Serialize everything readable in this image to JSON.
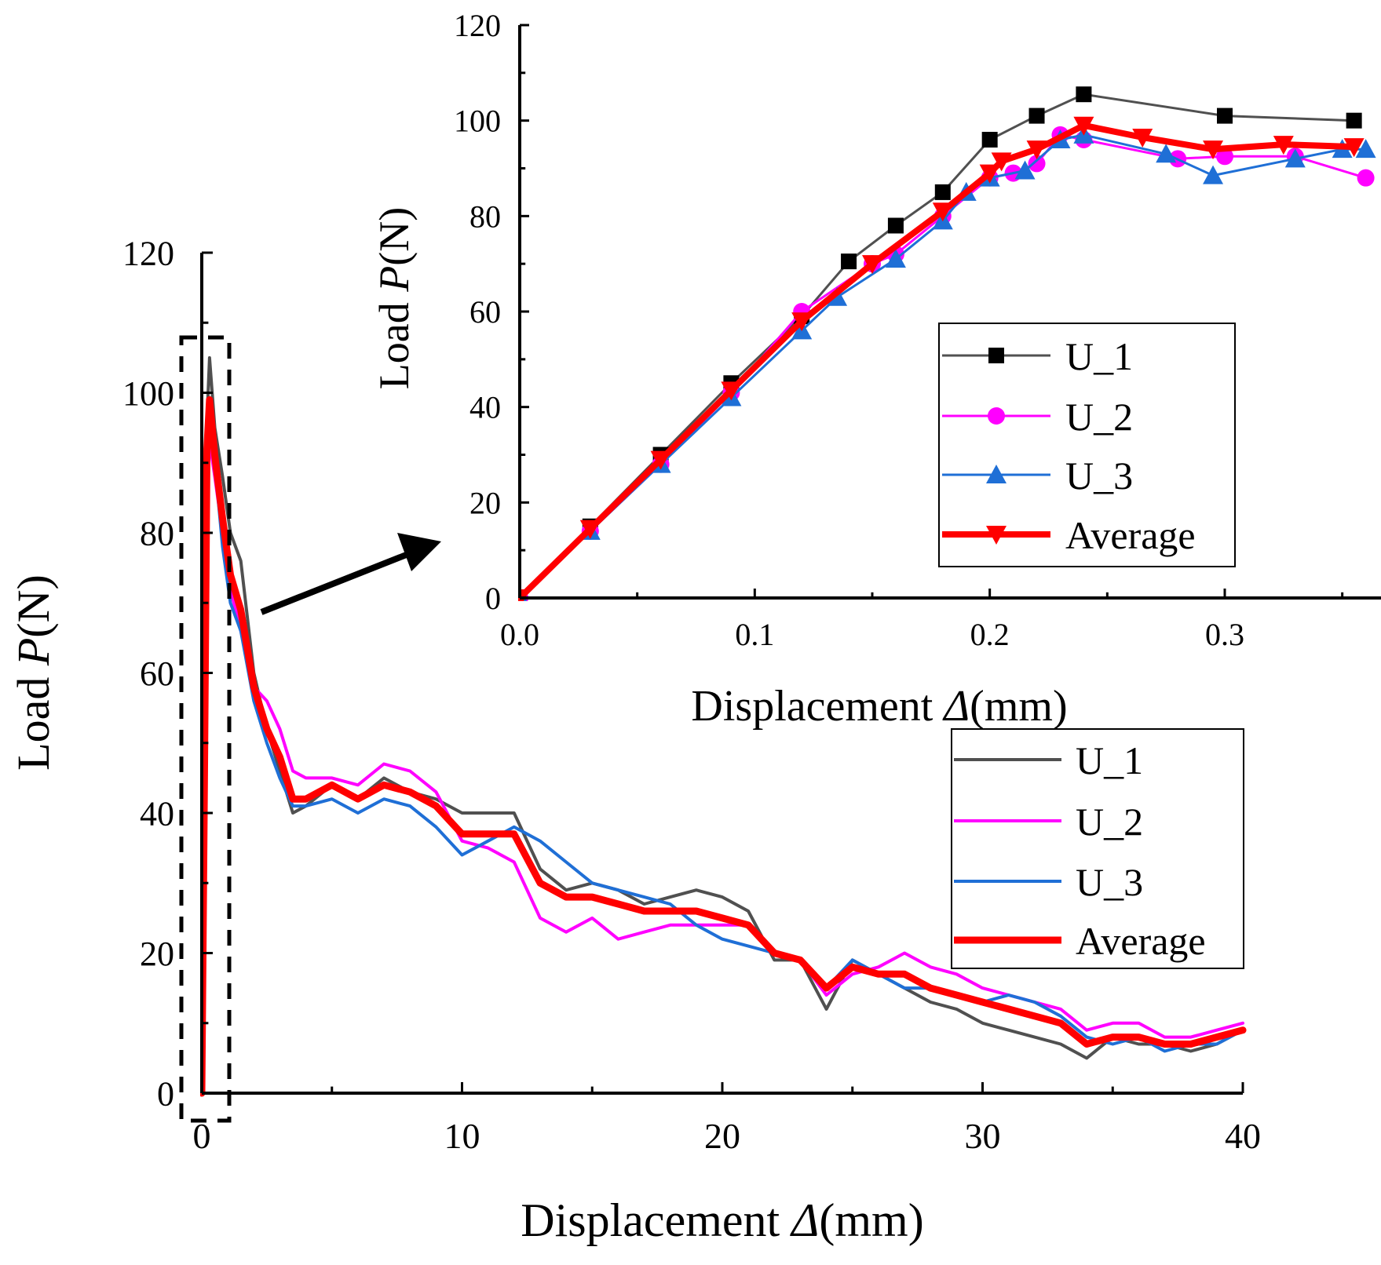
{
  "figure": {
    "colors": {
      "U_1": "#505050",
      "U_2": "#ff00ff",
      "U_3": "#1f6fd6",
      "Average": "#ff0000",
      "axis": "#000000"
    },
    "arrow_icon": "arrow-right-icon",
    "zoom_box": "dashed-rectangle"
  },
  "chart_data": [
    {
      "id": "main",
      "type": "line",
      "title": "",
      "xlabel_prefix": "Displacement ",
      "xlabel_symbol": "Δ",
      "xlabel_suffix": "(mm)",
      "ylabel_prefix": "Load ",
      "ylabel_symbol": "P",
      "ylabel_suffix": "(N)",
      "xlim": [
        0,
        40
      ],
      "ylim": [
        0,
        120
      ],
      "xticks": [
        0,
        10,
        20,
        30,
        40
      ],
      "xtick_labels": [
        "0",
        "10",
        "20",
        "30",
        "40"
      ],
      "yticks": [
        0,
        20,
        40,
        60,
        80,
        100,
        120
      ],
      "ytick_labels": [
        "0",
        "20",
        "40",
        "60",
        "80",
        "100",
        "120"
      ],
      "legend_position": "right",
      "series": [
        {
          "name": "U_1",
          "x": [
            0,
            0.1,
            0.2,
            0.3,
            0.5,
            0.8,
            1.1,
            1.5,
            2,
            2.5,
            3,
            3.5,
            4,
            5,
            6,
            7,
            8,
            9,
            10,
            11,
            12,
            13,
            14,
            15,
            16,
            17,
            18,
            19,
            20,
            21,
            22,
            23,
            24,
            25,
            26,
            27,
            28,
            29,
            30,
            31,
            32,
            33,
            34,
            35,
            36,
            37,
            38,
            39,
            40
          ],
          "y": [
            0,
            45,
            96,
            105,
            95,
            88,
            80,
            76,
            60,
            52,
            46,
            40,
            41,
            44,
            42,
            45,
            43,
            42,
            40,
            40,
            40,
            32,
            29,
            30,
            29,
            27,
            28,
            29,
            28,
            26,
            19,
            19,
            12,
            19,
            17,
            15,
            13,
            12,
            10,
            9,
            8,
            7,
            5,
            8,
            7,
            7,
            6,
            7,
            9
          ]
        },
        {
          "name": "U_2",
          "x": [
            0,
            0.1,
            0.2,
            0.3,
            0.5,
            0.8,
            1.1,
            1.5,
            2,
            2.5,
            3,
            3.5,
            4,
            5,
            6,
            7,
            8,
            9,
            10,
            11,
            12,
            13,
            14,
            15,
            16,
            17,
            18,
            19,
            20,
            21,
            22,
            23,
            24,
            25,
            26,
            27,
            28,
            29,
            30,
            31,
            32,
            33,
            34,
            35,
            36,
            37,
            38,
            39,
            40
          ],
          "y": [
            0,
            43,
            85,
            93,
            88,
            80,
            72,
            66,
            58,
            56,
            52,
            46,
            45,
            45,
            44,
            47,
            46,
            43,
            36,
            35,
            33,
            25,
            23,
            25,
            22,
            23,
            24,
            24,
            24,
            24,
            20,
            19,
            14,
            17,
            18,
            20,
            18,
            17,
            15,
            14,
            13,
            12,
            9,
            10,
            10,
            8,
            8,
            9,
            10
          ]
        },
        {
          "name": "U_3",
          "x": [
            0,
            0.1,
            0.2,
            0.3,
            0.5,
            0.8,
            1.1,
            1.5,
            2,
            2.5,
            3,
            3.5,
            4,
            5,
            6,
            7,
            8,
            9,
            10,
            11,
            12,
            13,
            14,
            15,
            16,
            17,
            18,
            19,
            20,
            21,
            22,
            23,
            24,
            25,
            26,
            27,
            28,
            29,
            30,
            31,
            32,
            33,
            34,
            35,
            36,
            37,
            38,
            39,
            40
          ],
          "y": [
            0,
            44,
            88,
            97,
            90,
            78,
            70,
            66,
            56,
            50,
            45,
            41,
            41,
            42,
            40,
            42,
            41,
            38,
            34,
            36,
            38,
            36,
            33,
            30,
            29,
            28,
            27,
            24,
            22,
            21,
            20,
            19,
            15,
            19,
            17,
            15,
            15,
            14,
            13,
            14,
            13,
            11,
            8,
            7,
            8,
            6,
            7,
            7,
            9
          ]
        },
        {
          "name": "Average",
          "x": [
            0,
            0.1,
            0.2,
            0.3,
            0.5,
            0.8,
            1.1,
            1.5,
            2,
            2.5,
            3,
            3.5,
            4,
            5,
            6,
            7,
            8,
            9,
            10,
            11,
            12,
            13,
            14,
            15,
            16,
            17,
            18,
            19,
            20,
            21,
            22,
            23,
            24,
            25,
            26,
            27,
            28,
            29,
            30,
            31,
            32,
            33,
            34,
            35,
            36,
            37,
            38,
            39,
            40
          ],
          "y": [
            0,
            44,
            92,
            99,
            91,
            82,
            74,
            69,
            58,
            52,
            48,
            42,
            42,
            44,
            42,
            44,
            43,
            41,
            37,
            37,
            37,
            30,
            28,
            28,
            27,
            26,
            26,
            26,
            25,
            24,
            20,
            19,
            15,
            18,
            17,
            17,
            15,
            14,
            13,
            12,
            11,
            10,
            7,
            8,
            8,
            7,
            7,
            8,
            9
          ]
        }
      ]
    },
    {
      "id": "inset",
      "type": "line",
      "title": "",
      "xlabel_prefix": "Displacement ",
      "xlabel_symbol": "Δ",
      "xlabel_suffix": "(mm)",
      "ylabel_prefix": "Load ",
      "ylabel_symbol": "P",
      "ylabel_suffix": "(N)",
      "xlim": [
        0,
        0.36
      ],
      "ylim": [
        0,
        120
      ],
      "xticks": [
        0,
        0.1,
        0.2,
        0.3
      ],
      "xtick_labels": [
        "0.0",
        "0.1",
        "0.2",
        "0.3"
      ],
      "yticks": [
        0,
        20,
        40,
        60,
        80,
        100,
        120
      ],
      "ytick_labels": [
        "0",
        "20",
        "40",
        "60",
        "80",
        "100",
        "120"
      ],
      "legend_position": "center-right",
      "series": [
        {
          "name": "U_1",
          "marker": "square",
          "x": [
            0,
            0.03,
            0.06,
            0.09,
            0.12,
            0.14,
            0.16,
            0.18,
            0.2,
            0.22,
            0.24,
            0.3,
            0.355
          ],
          "y": [
            0,
            15,
            30,
            45,
            59,
            70.5,
            78,
            85,
            96,
            101,
            105.5,
            101,
            100
          ]
        },
        {
          "name": "U_2",
          "marker": "circle",
          "x": [
            0,
            0.03,
            0.06,
            0.09,
            0.12,
            0.15,
            0.16,
            0.18,
            0.2,
            0.21,
            0.22,
            0.23,
            0.24,
            0.28,
            0.3,
            0.33,
            0.36
          ],
          "y": [
            0,
            14,
            28,
            43,
            60,
            70,
            72,
            80,
            88,
            89,
            91,
            97,
            96,
            92,
            92.5,
            92.5,
            88
          ]
        },
        {
          "name": "U_3",
          "marker": "triangle-up",
          "x": [
            0,
            0.03,
            0.06,
            0.09,
            0.12,
            0.135,
            0.16,
            0.18,
            0.19,
            0.2,
            0.215,
            0.23,
            0.24,
            0.275,
            0.295,
            0.33,
            0.35,
            0.36
          ],
          "y": [
            0,
            14,
            28,
            42,
            56,
            63,
            71,
            79,
            85,
            88,
            89.5,
            96,
            97,
            93,
            88.5,
            92,
            94,
            94
          ]
        },
        {
          "name": "Average",
          "marker": "triangle-down",
          "x": [
            0,
            0.03,
            0.06,
            0.09,
            0.12,
            0.15,
            0.18,
            0.2,
            0.205,
            0.22,
            0.24,
            0.265,
            0.295,
            0.325,
            0.355
          ],
          "y": [
            0,
            14.5,
            29,
            43.5,
            58,
            70,
            81,
            89,
            91.5,
            94,
            99,
            96.5,
            94,
            95,
            94.5
          ]
        }
      ]
    }
  ],
  "legend": {
    "main": [
      "U_1",
      "U_2",
      "U_3",
      "Average"
    ],
    "inset": [
      "U_1",
      "U_2",
      "U_3",
      "Average"
    ]
  }
}
